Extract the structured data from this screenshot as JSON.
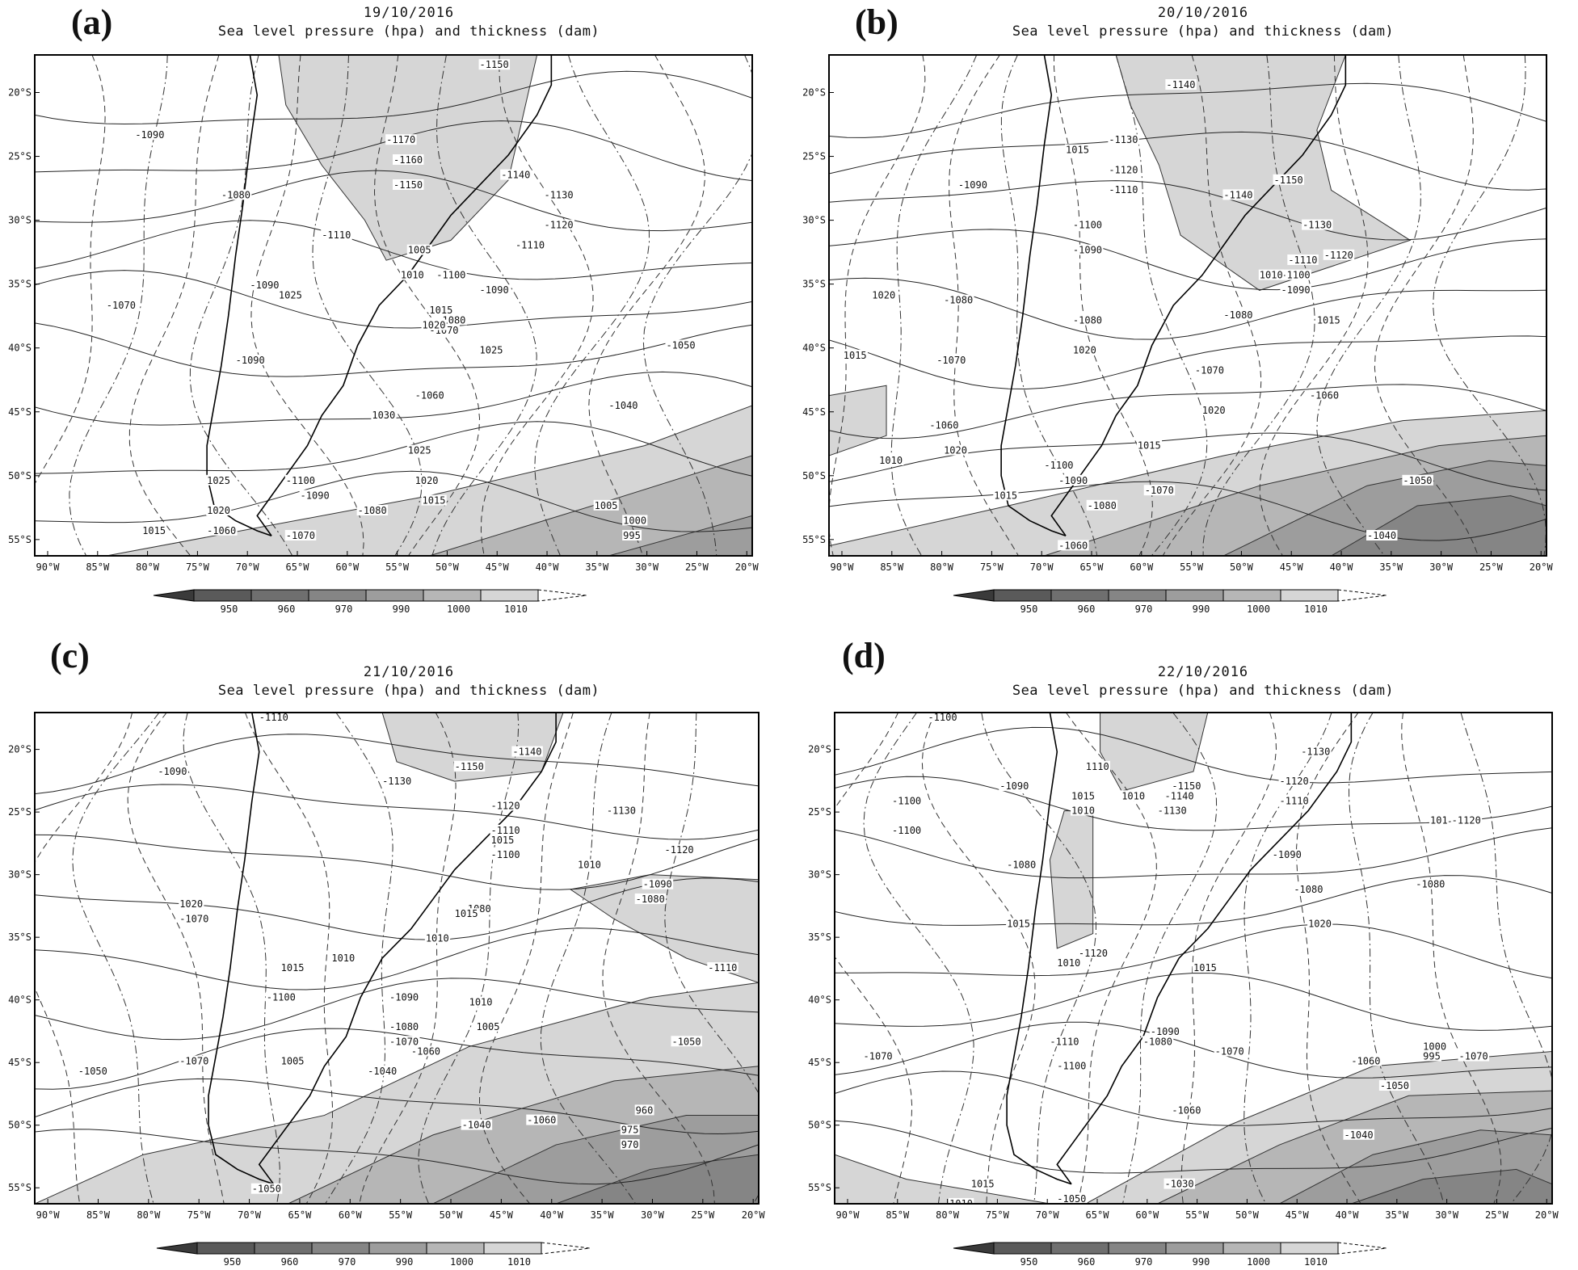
{
  "title": "Sea level pressure (hpa) and thickness (dam)",
  "lat_ticks": [
    "20°S",
    "25°S",
    "30°S",
    "35°S",
    "40°S",
    "45°S",
    "50°S",
    "55°S"
  ],
  "lon_ticks": [
    "90°W",
    "85°W",
    "80°W",
    "75°W",
    "70°W",
    "65°W",
    "60°W",
    "55°W",
    "50°W",
    "45°W",
    "40°W",
    "35°W",
    "30°W",
    "25°W",
    "20°W"
  ],
  "legend": {
    "levels": [
      "950",
      "960",
      "970",
      "990",
      "1000",
      "1010"
    ],
    "colors": [
      "#5a5a5a",
      "#6f6f6f",
      "#858585",
      "#9d9d9d",
      "#b6b6b6",
      "#d6d6d6"
    ]
  },
  "panels": [
    {
      "letter": "(a)",
      "date": "19/10/2016",
      "thickness_labels": [
        "-1150",
        "-1090",
        "-1170",
        "-1160",
        "-1150",
        "-1140",
        "-1130",
        "-1080",
        "-1120",
        "-1110",
        "-1110",
        "-1100",
        "-1090",
        "-1090",
        "-1070",
        "-1080",
        "-1070",
        "-1050",
        "-1090",
        "-1060",
        "-1040",
        "-1100",
        "-1090",
        "-1080",
        "-1060",
        "-1070"
      ],
      "pressure_labels": [
        "1005",
        "1010",
        "1025",
        "1015",
        "1020",
        "1025",
        "1030",
        "1025",
        "1020",
        "1015",
        "1025",
        "1020",
        "1005",
        "1000",
        "995",
        "1015"
      ]
    },
    {
      "letter": "(b)",
      "date": "20/10/2016",
      "thickness_labels": [
        "-1140",
        "-1130",
        "-1120",
        "-1110",
        "-1150",
        "-1090",
        "-1140",
        "-1100",
        "-1130",
        "-1090",
        "-1120",
        "-1110",
        "-1100",
        "-1090",
        "-1080",
        "-1080",
        "-1080",
        "-1070",
        "-1070",
        "-1060",
        "-1060",
        "-1100",
        "-1090",
        "-1080",
        "-1050",
        "-1070",
        "-1060",
        "-1040"
      ],
      "pressure_labels": [
        "1015",
        "1020",
        "1015",
        "1020",
        "1020",
        "1020",
        "1015",
        "1015",
        "1010",
        "1015",
        "1010"
      ]
    },
    {
      "letter": "(c)",
      "date": "21/10/2016",
      "thickness_labels": [
        "-1110",
        "-1090",
        "-1140",
        "-1150",
        "-1130",
        "-1120",
        "-1130",
        "-1110",
        "-1100",
        "-1120",
        "-1090",
        "-1080",
        "-1080",
        "-1070",
        "-1110",
        "-1100",
        "-1090",
        "-1080",
        "-1070",
        "-1060",
        "-1040",
        "-1050",
        "-1040",
        "-1060",
        "-1050",
        "-1070",
        "-1050"
      ],
      "pressure_labels": [
        "1010",
        "1015",
        "1010",
        "1015",
        "1020",
        "1010",
        "1015",
        "1010",
        "1005",
        "1005",
        "960",
        "975",
        "970"
      ]
    },
    {
      "letter": "(d)",
      "date": "22/10/2016",
      "thickness_labels": [
        "-1100",
        "-1130",
        "-1090",
        "-1100",
        "-1150",
        "-1140",
        "-1120",
        "-1130",
        "-1110",
        "-1100",
        "-1120",
        "-1080",
        "-1090",
        "-1080",
        "-1080",
        "-1120",
        "-1090",
        "-1080",
        "-1070",
        "-1110",
        "-1100",
        "-1060",
        "-1070",
        "-1070",
        "-1060",
        "-1050",
        "-1040",
        "-1030",
        "-1050"
      ],
      "pressure_labels": [
        "1110",
        "1015",
        "1010",
        "1010",
        "101",
        "1015",
        "1010",
        "1020",
        "1015",
        "1000",
        "995",
        "1015",
        "1010"
      ]
    }
  ]
}
